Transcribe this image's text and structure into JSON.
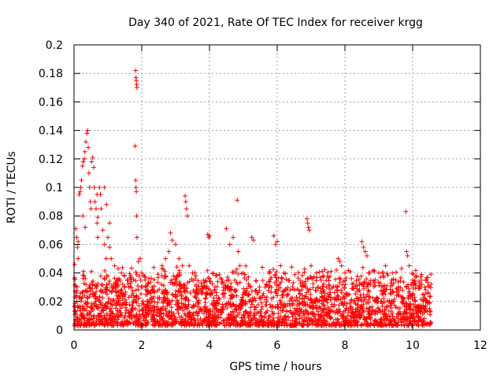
{
  "chart_data": {
    "type": "scatter",
    "title": "Day 340 of 2021, Rate Of TEC Index for receiver krgg",
    "xlabel": "GPS time / hours",
    "ylabel": "ROTI / TECUs",
    "xlim": [
      0,
      12
    ],
    "ylim": [
      0,
      0.2
    ],
    "x_ticks": [
      0,
      2,
      4,
      6,
      8,
      10,
      12
    ],
    "y_ticks": [
      0,
      0.02,
      0.04,
      0.06,
      0.08,
      0.1,
      0.12,
      0.14,
      0.16,
      0.18,
      0.2
    ],
    "x_tick_labels": [
      "0",
      "2",
      "4",
      "6",
      "8",
      "10",
      "12"
    ],
    "y_tick_labels": [
      "0",
      "0.02",
      "0.04",
      "0.06",
      "0.08",
      "0.1",
      "0.12",
      "0.14",
      "0.16",
      "0.18",
      "0.2"
    ],
    "grid": true,
    "marker": "+",
    "color": "#ff0000",
    "series": [
      {
        "name": "ROTI",
        "points": [
          [
            0.02,
            0.046
          ],
          [
            0.05,
            0.071
          ],
          [
            0.08,
            0.065
          ],
          [
            0.1,
            0.058
          ],
          [
            0.12,
            0.05
          ],
          [
            0.15,
            0.095
          ],
          [
            0.2,
            0.1
          ],
          [
            0.22,
            0.105
          ],
          [
            0.25,
            0.115
          ],
          [
            0.27,
            0.118
          ],
          [
            0.3,
            0.12
          ],
          [
            0.32,
            0.125
          ],
          [
            0.35,
            0.132
          ],
          [
            0.38,
            0.138
          ],
          [
            0.4,
            0.14
          ],
          [
            0.42,
            0.128
          ],
          [
            0.44,
            0.11
          ],
          [
            0.46,
            0.1
          ],
          [
            0.48,
            0.09
          ],
          [
            0.5,
            0.085
          ],
          [
            0.52,
            0.118
          ],
          [
            0.55,
            0.121
          ],
          [
            0.58,
            0.114
          ],
          [
            0.6,
            0.1
          ],
          [
            0.62,
            0.09
          ],
          [
            0.65,
            0.085
          ],
          [
            0.68,
            0.075
          ],
          [
            0.7,
            0.065
          ],
          [
            0.75,
            0.1
          ],
          [
            0.78,
            0.095
          ],
          [
            0.8,
            0.085
          ],
          [
            0.85,
            0.07
          ],
          [
            0.9,
            0.06
          ],
          [
            0.95,
            0.05
          ],
          [
            1.0,
            0.065
          ],
          [
            1.05,
            0.058
          ],
          [
            1.1,
            0.05
          ],
          [
            1.2,
            0.045
          ],
          [
            1.3,
            0.043
          ],
          [
            1.4,
            0.04
          ],
          [
            0.26,
            0.08
          ],
          [
            0.18,
            0.097
          ],
          [
            0.12,
            0.062
          ],
          [
            0.33,
            0.072
          ],
          [
            0.9,
            0.1
          ],
          [
            0.96,
            0.088
          ],
          [
            1.05,
            0.075
          ],
          [
            0.68,
            0.095
          ],
          [
            0.7,
            0.079
          ],
          [
            1.82,
            0.182
          ],
          [
            1.83,
            0.177
          ],
          [
            1.84,
            0.175
          ],
          [
            1.85,
            0.172
          ],
          [
            1.86,
            0.17
          ],
          [
            1.8,
            0.129
          ],
          [
            1.82,
            0.105
          ],
          [
            1.83,
            0.1
          ],
          [
            1.84,
            0.097
          ],
          [
            1.85,
            0.08
          ],
          [
            1.86,
            0.065
          ],
          [
            1.9,
            0.048
          ],
          [
            1.95,
            0.05
          ],
          [
            2.0,
            0.04
          ],
          [
            2.1,
            0.035
          ],
          [
            2.2,
            0.033
          ],
          [
            2.6,
            0.045
          ],
          [
            2.7,
            0.05
          ],
          [
            2.8,
            0.055
          ],
          [
            2.85,
            0.068
          ],
          [
            2.9,
            0.063
          ],
          [
            3.0,
            0.06
          ],
          [
            3.1,
            0.05
          ],
          [
            3.2,
            0.045
          ],
          [
            3.28,
            0.094
          ],
          [
            3.3,
            0.09
          ],
          [
            3.32,
            0.085
          ],
          [
            3.35,
            0.08
          ],
          [
            3.4,
            0.045
          ],
          [
            3.5,
            0.04
          ],
          [
            3.6,
            0.038
          ],
          [
            3.95,
            0.067
          ],
          [
            4.0,
            0.066
          ],
          [
            3.98,
            0.065
          ],
          [
            4.1,
            0.04
          ],
          [
            4.5,
            0.071
          ],
          [
            4.6,
            0.06
          ],
          [
            4.7,
            0.065
          ],
          [
            4.82,
            0.091
          ],
          [
            4.85,
            0.055
          ],
          [
            4.9,
            0.045
          ],
          [
            5.0,
            0.04
          ],
          [
            5.25,
            0.065
          ],
          [
            5.3,
            0.063
          ],
          [
            5.9,
            0.066
          ],
          [
            5.95,
            0.06
          ],
          [
            6.0,
            0.062
          ],
          [
            6.1,
            0.045
          ],
          [
            6.2,
            0.04
          ],
          [
            6.88,
            0.078
          ],
          [
            6.9,
            0.075
          ],
          [
            6.92,
            0.072
          ],
          [
            6.95,
            0.07
          ],
          [
            7.0,
            0.045
          ],
          [
            7.8,
            0.05
          ],
          [
            7.85,
            0.048
          ],
          [
            7.9,
            0.045
          ],
          [
            8.0,
            0.04
          ],
          [
            8.5,
            0.062
          ],
          [
            8.55,
            0.058
          ],
          [
            8.6,
            0.055
          ],
          [
            8.65,
            0.052
          ],
          [
            8.7,
            0.04
          ],
          [
            9.0,
            0.04
          ],
          [
            9.2,
            0.045
          ],
          [
            9.4,
            0.04
          ],
          [
            9.5,
            0.035
          ],
          [
            9.8,
            0.083
          ],
          [
            9.82,
            0.055
          ],
          [
            9.85,
            0.052
          ],
          [
            9.9,
            0.045
          ],
          [
            10.0,
            0.035
          ],
          [
            10.2,
            0.03
          ],
          [
            10.3,
            0.025
          ],
          [
            10.4,
            0.02
          ],
          [
            10.5,
            0.015
          ]
        ]
      }
    ],
    "dense_band": {
      "x_range": [
        0,
        10.55
      ],
      "y_range": [
        0.003,
        0.03
      ],
      "description": "dense cluster of points"
    }
  }
}
